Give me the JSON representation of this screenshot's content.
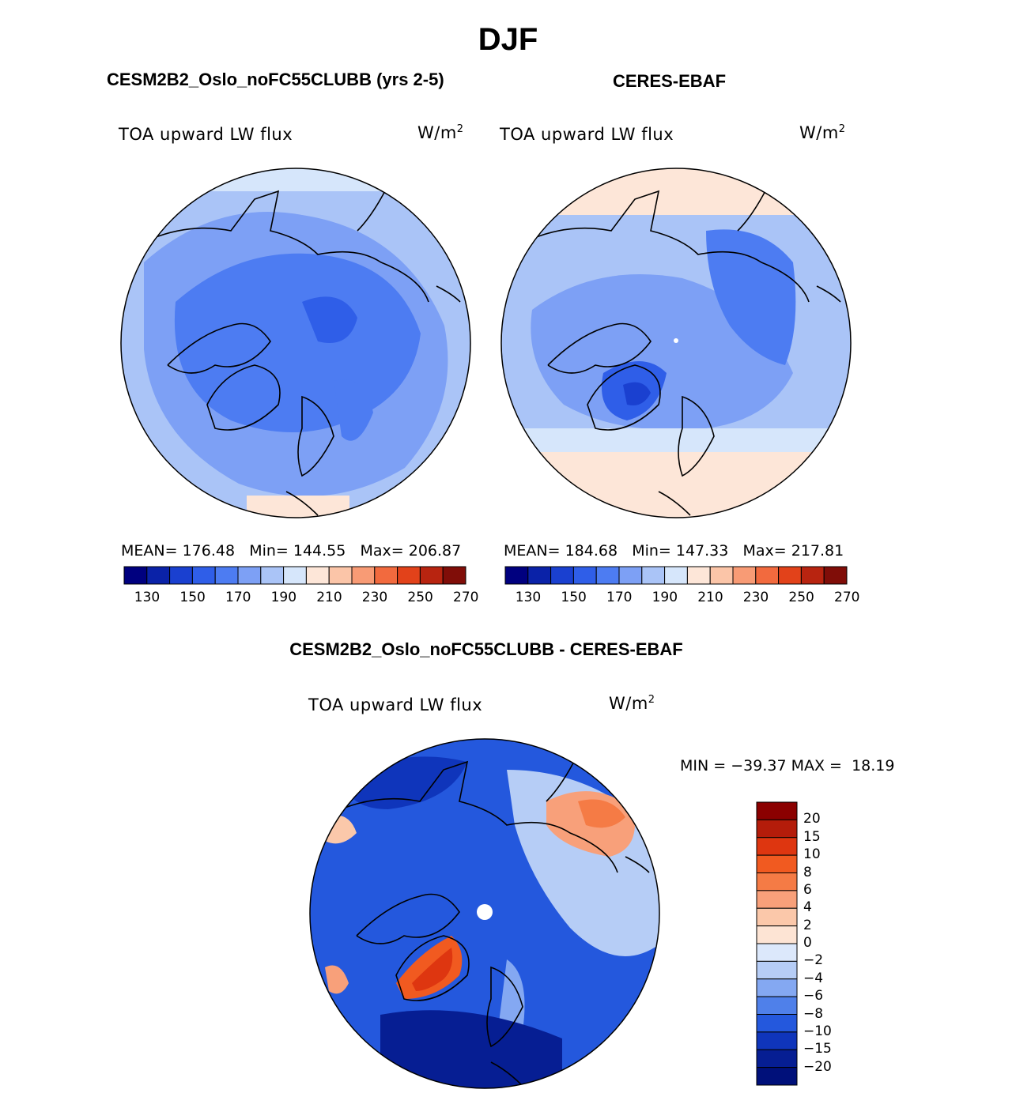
{
  "title": "DJF",
  "panels": [
    {
      "id": "model",
      "title": "CESM2B2_Oslo_noFC55CLUBB (yrs 2-5)",
      "variable": "TOA upward LW flux",
      "units_base": "W/m",
      "units_exp": "2",
      "stats": {
        "mean_label": "MEAN=",
        "mean": "176.48",
        "min_label": "Min=",
        "min": "144.55",
        "max_label": "Max=",
        "max": "206.87"
      }
    },
    {
      "id": "obs",
      "title": "CERES-EBAF",
      "variable": "TOA upward LW flux",
      "units_base": "W/m",
      "units_exp": "2",
      "stats": {
        "mean_label": "MEAN=",
        "mean": "184.68",
        "min_label": "Min=",
        "min": "147.33",
        "max_label": "Max=",
        "max": "217.81"
      }
    }
  ],
  "colorbar_top": {
    "tick_labels": [
      "130",
      "150",
      "170",
      "190",
      "210",
      "230",
      "250",
      "270"
    ],
    "colors": [
      "#00007f",
      "#0a22a8",
      "#1a40d0",
      "#2f5ee8",
      "#4d7cf2",
      "#7da0f5",
      "#aac4f7",
      "#d6e6fb",
      "#fde6d8",
      "#fbc5a8",
      "#f89b75",
      "#f26a3e",
      "#e2421a",
      "#b82410",
      "#800d08"
    ]
  },
  "diff": {
    "title": "CESM2B2_Oslo_noFC55CLUBB - CERES-EBAF",
    "variable": "TOA upward LW flux",
    "units_base": "W/m",
    "units_exp": "2",
    "min_label": "MIN =",
    "min": "−39.37",
    "max_label": "MAX =",
    "max": "18.19",
    "colorbar": {
      "tick_labels": [
        "20",
        "15",
        "10",
        "8",
        "6",
        "4",
        "2",
        "0",
        "−2",
        "−4",
        "−6",
        "−8",
        "−10",
        "−15",
        "−20"
      ],
      "colors": [
        "#8b0000",
        "#b41c0a",
        "#de3610",
        "#f15a20",
        "#f57b45",
        "#f8a07a",
        "#fbc8aa",
        "#fde4d4",
        "#dce8fb",
        "#b6cdf6",
        "#84a8f2",
        "#4f80ea",
        "#2458dd",
        "#0f35bb",
        "#061e93",
        "#00107a"
      ]
    }
  },
  "map_colors": {
    "model_bg": "#7da0f5",
    "obs_bg": "#aac4f7",
    "diff_bg": "#1a40d0"
  }
}
